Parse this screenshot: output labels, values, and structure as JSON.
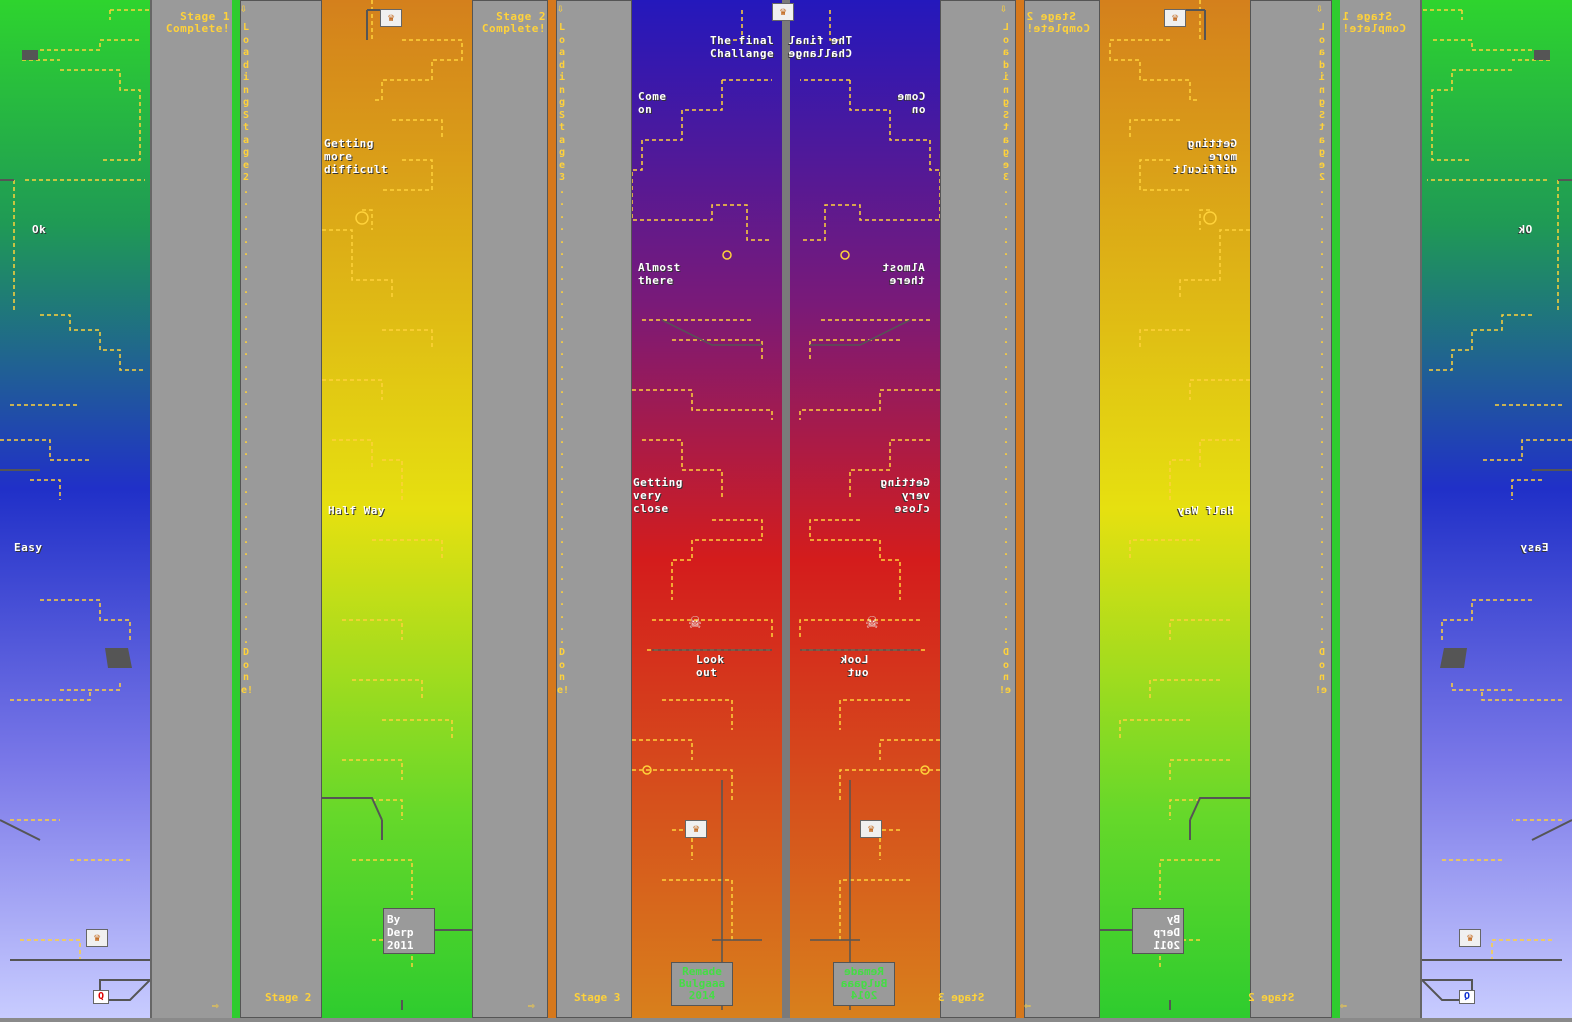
{
  "labels": {
    "ok": "Ok",
    "easy": "Easy",
    "getting_more_difficult": "Getting\nmore\ndifficult",
    "half_way": "Half Way",
    "come_on": "Come\non",
    "almost_there": "Almost\nthere",
    "getting_very_close": "Getting\nvery\nclose",
    "look_out": "Look\nout",
    "final_challenge": "The final\nChallange"
  },
  "stages": {
    "stage1_complete": "Stage 1\nComplete!",
    "stage2_complete": "Stage 2\nComplete!",
    "stage2": "Stage 2",
    "stage3": "Stage 3",
    "loading_stage2": "Loading Stage 2 . . . . . . . . . . . . . . . . . . . . . . . . . . . . . . . . . . . . . Done!",
    "loading_stage3": "Loading Stage 3 . . . . . . . . . . . . . . . . . . . . . . . . . . . . . . . . . . . . . Done!"
  },
  "credits": {
    "by": "By\nDerp\n2011",
    "remade": "Remade\nBulgaaa\n2014"
  },
  "buttons": {
    "quit": "Q"
  },
  "icons": {
    "trophy": "trophy-icon",
    "skull": "skull-icon",
    "arrow_down": "arrow-down-icon",
    "arrow_right": "arrow-right-icon"
  },
  "colors": {
    "stage1_top": "#2ecc2e",
    "stage1_mid": "#2a3fd0",
    "stage1_bottom": "#c0c8ff",
    "stage2_top": "#d98a1c",
    "stage2_mid": "#e7e010",
    "stage2_bottom": "#2ecc2e",
    "stage3_top": "#2a1fb8",
    "stage3_mid": "#cc2020",
    "stage3_bottom": "#d6781c",
    "track": "#ffd23a",
    "wall": "#555555"
  }
}
